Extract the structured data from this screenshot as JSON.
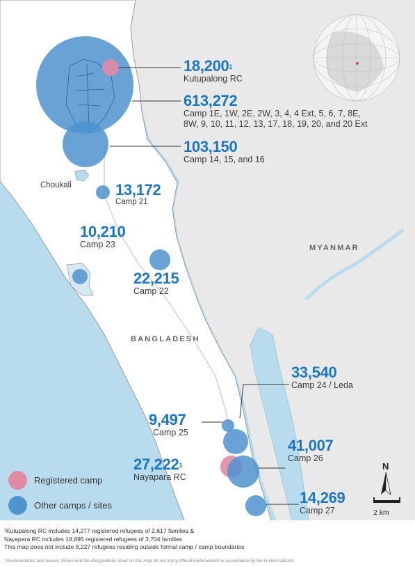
{
  "colors": {
    "sea": "#b8dced",
    "land": "#f2f2f2",
    "bangladesh": "#ffffff",
    "camp": "#4f93cf",
    "registered": "#e28aa4",
    "label": "#1b76c4",
    "road": "#d8d8d8"
  },
  "sites": [
    {
      "id": "kutupalong-rc",
      "value": "18,200",
      "footnote": "1",
      "label": "Kutupalong RC",
      "registered": true
    },
    {
      "id": "kutupalong-expansion",
      "value": "613,272",
      "label_lines": [
        "Camp 1E, 1W, 2E, 2W, 3, 4, 4 Ext, 5, 6, 7, 8E,",
        "8W, 9, 10, 11, 12, 13, 17, 18, 19, 20, and 20 Ext"
      ],
      "registered": false
    },
    {
      "id": "camp-14-15-16",
      "value": "103,150",
      "label": "Camp 14, 15, and 16",
      "registered": false
    },
    {
      "id": "camp-21",
      "value": "13,172",
      "label": "Camp 21",
      "registered": false
    },
    {
      "id": "camp-23",
      "value": "10,210",
      "label": "Camp 23",
      "registered": false
    },
    {
      "id": "camp-22",
      "value": "22,215",
      "label": "Camp 22",
      "registered": false
    },
    {
      "id": "camp-24",
      "value": "33,540",
      "label": "Camp 24 / Leda",
      "registered": false
    },
    {
      "id": "camp-25",
      "value": "9,497",
      "label": "Camp 25",
      "registered": false
    },
    {
      "id": "nayapara-rc",
      "value": "27,222",
      "footnote": "1",
      "label": "Nayapara RC",
      "registered": true
    },
    {
      "id": "camp-26",
      "value": "41,007",
      "label": "Camp 26",
      "registered": false
    },
    {
      "id": "camp-27",
      "value": "14,269",
      "label": "Camp 27",
      "registered": false
    }
  ],
  "places": {
    "choukali": "Choukali",
    "myanmar": "MYANMAR",
    "bangladesh": "BANGLADESH"
  },
  "legend": {
    "registered": "Registered camp",
    "other": "Other camps / sites"
  },
  "scale": {
    "label": "2 km"
  },
  "north": "N",
  "notes": [
    "¹Kutupalong RC includes 14,277 registered refugees of 2,617 families &",
    "Nayapara RC includes 19,895 registered refugees of 3,704 families",
    "This map does not include 8,227 refugees residing outside formal camp / camp boundaries"
  ],
  "disclaimer": "The boundaries and names shown and the designations used on this map do not imply official endorsement or acceptance by the United Nations."
}
